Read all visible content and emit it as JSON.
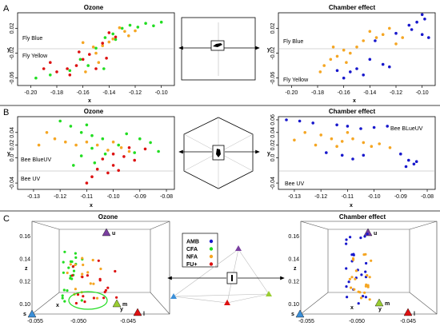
{
  "colors": {
    "green": "#22dd22",
    "orange": "#f5a623",
    "red": "#dd1111",
    "blue": "#1818cc",
    "gray": "#888888"
  },
  "panels": {
    "A": {
      "letter": "A",
      "left": {
        "title": "Ozone",
        "xlabel": "x",
        "ylabel": "y",
        "xticks": [
          "-0.20",
          "-0.18",
          "-0.16",
          "-0.14",
          "-0.12",
          "-0.10"
        ],
        "yticks": [
          "-0.06",
          "-0.02",
          "0.02"
        ],
        "labels": [
          "Fly Blue",
          "Fly Yellow"
        ],
        "points": [
          {
            "x": -0.137,
            "y": 0.011,
            "c": "green"
          },
          {
            "x": -0.13,
            "y": 0.02,
            "c": "green"
          },
          {
            "x": -0.124,
            "y": 0.025,
            "c": "green"
          },
          {
            "x": -0.118,
            "y": 0.022,
            "c": "green"
          },
          {
            "x": -0.112,
            "y": 0.028,
            "c": "green"
          },
          {
            "x": -0.106,
            "y": 0.024,
            "c": "green"
          },
          {
            "x": -0.1,
            "y": 0.03,
            "c": "green"
          },
          {
            "x": -0.143,
            "y": 0.005,
            "c": "green"
          },
          {
            "x": -0.135,
            "y": 0.002,
            "c": "green"
          },
          {
            "x": -0.15,
            "y": -0.012,
            "c": "green"
          },
          {
            "x": -0.162,
            "y": -0.03,
            "c": "green"
          },
          {
            "x": -0.17,
            "y": -0.048,
            "c": "green"
          },
          {
            "x": -0.185,
            "y": -0.055,
            "c": "green"
          },
          {
            "x": -0.196,
            "y": -0.06,
            "c": "green"
          },
          {
            "x": -0.144,
            "y": -0.045,
            "c": "green"
          },
          {
            "x": -0.156,
            "y": -0.04,
            "c": "green"
          },
          {
            "x": -0.132,
            "y": 0.021,
            "c": "orange"
          },
          {
            "x": -0.128,
            "y": 0.015,
            "c": "orange"
          },
          {
            "x": -0.125,
            "y": 0.008,
            "c": "orange"
          },
          {
            "x": -0.12,
            "y": 0.016,
            "c": "orange"
          },
          {
            "x": -0.14,
            "y": -0.002,
            "c": "orange"
          },
          {
            "x": -0.145,
            "y": -0.008,
            "c": "orange"
          },
          {
            "x": -0.152,
            "y": -0.01,
            "c": "orange"
          },
          {
            "x": -0.16,
            "y": -0.003,
            "c": "orange"
          },
          {
            "x": -0.15,
            "y": -0.02,
            "c": "orange"
          },
          {
            "x": -0.158,
            "y": -0.05,
            "c": "orange"
          },
          {
            "x": -0.148,
            "y": -0.035,
            "c": "orange"
          },
          {
            "x": -0.137,
            "y": 0.003,
            "c": "orange"
          },
          {
            "x": -0.14,
            "y": 0.013,
            "c": "red"
          },
          {
            "x": -0.135,
            "y": 0.006,
            "c": "red"
          },
          {
            "x": -0.145,
            "y": -0.004,
            "c": "red"
          },
          {
            "x": -0.155,
            "y": -0.022,
            "c": "red"
          },
          {
            "x": -0.16,
            "y": -0.03,
            "c": "red"
          },
          {
            "x": -0.165,
            "y": -0.04,
            "c": "red"
          },
          {
            "x": -0.172,
            "y": -0.045,
            "c": "red"
          },
          {
            "x": -0.18,
            "y": -0.05,
            "c": "red"
          },
          {
            "x": -0.185,
            "y": -0.035,
            "c": "red"
          },
          {
            "x": -0.19,
            "y": -0.045,
            "c": "red"
          },
          {
            "x": -0.17,
            "y": -0.055,
            "c": "red"
          },
          {
            "x": -0.15,
            "y": -0.045,
            "c": "red"
          },
          {
            "x": -0.142,
            "y": -0.028,
            "c": "red"
          },
          {
            "x": -0.163,
            "y": -0.018,
            "c": "red"
          }
        ]
      },
      "right": {
        "title": "Chamber effect",
        "xlabel": "x",
        "ylabel": "y",
        "xticks": [
          "-0.20",
          "-0.18",
          "-0.16",
          "-0.14",
          "-0.12",
          "-0.10"
        ],
        "yticks": [
          "-0.06",
          "-0.02",
          "0.02"
        ],
        "labels": [
          "Fly Blue",
          "Fly Yellow"
        ],
        "points": [
          {
            "x": -0.1,
            "y": 0.042,
            "c": "blue"
          },
          {
            "x": -0.098,
            "y": 0.035,
            "c": "blue"
          },
          {
            "x": -0.104,
            "y": 0.03,
            "c": "blue"
          },
          {
            "x": -0.11,
            "y": 0.025,
            "c": "blue"
          },
          {
            "x": -0.108,
            "y": 0.018,
            "c": "blue"
          },
          {
            "x": -0.1,
            "y": 0.01,
            "c": "blue"
          },
          {
            "x": -0.095,
            "y": 0.005,
            "c": "blue"
          },
          {
            "x": -0.12,
            "y": 0.012,
            "c": "blue"
          },
          {
            "x": -0.136,
            "y": 0.0,
            "c": "blue"
          },
          {
            "x": -0.14,
            "y": -0.03,
            "c": "blue"
          },
          {
            "x": -0.15,
            "y": -0.045,
            "c": "blue"
          },
          {
            "x": -0.145,
            "y": -0.055,
            "c": "blue"
          },
          {
            "x": -0.155,
            "y": -0.05,
            "c": "blue"
          },
          {
            "x": -0.16,
            "y": -0.06,
            "c": "blue"
          },
          {
            "x": -0.165,
            "y": -0.048,
            "c": "blue"
          },
          {
            "x": -0.13,
            "y": -0.038,
            "c": "blue"
          },
          {
            "x": -0.125,
            "y": -0.042,
            "c": "blue"
          },
          {
            "x": -0.125,
            "y": 0.02,
            "c": "orange"
          },
          {
            "x": -0.13,
            "y": 0.01,
            "c": "orange"
          },
          {
            "x": -0.135,
            "y": 0.005,
            "c": "orange"
          },
          {
            "x": -0.14,
            "y": 0.015,
            "c": "orange"
          },
          {
            "x": -0.145,
            "y": 0.0,
            "c": "orange"
          },
          {
            "x": -0.15,
            "y": -0.01,
            "c": "orange"
          },
          {
            "x": -0.155,
            "y": -0.02,
            "c": "orange"
          },
          {
            "x": -0.16,
            "y": -0.015,
            "c": "orange"
          },
          {
            "x": -0.165,
            "y": -0.025,
            "c": "orange"
          },
          {
            "x": -0.17,
            "y": -0.03,
            "c": "orange"
          },
          {
            "x": -0.175,
            "y": -0.04,
            "c": "orange"
          },
          {
            "x": -0.178,
            "y": -0.05,
            "c": "orange"
          },
          {
            "x": -0.12,
            "y": -0.005,
            "c": "orange"
          },
          {
            "x": -0.115,
            "y": 0.005,
            "c": "orange"
          },
          {
            "x": -0.168,
            "y": -0.01,
            "c": "orange"
          },
          {
            "x": -0.158,
            "y": -0.035,
            "c": "orange"
          }
        ]
      }
    },
    "B": {
      "letter": "B",
      "left": {
        "title": "Ozone",
        "xlabel": "x",
        "ylabel": "y",
        "xticks": [
          "-0.13",
          "-0.12",
          "-0.11",
          "-0.10",
          "-0.09",
          "-0.08"
        ],
        "yticks": [
          "-0.04",
          "0.0",
          "0.02",
          "0.04"
        ],
        "labels": [
          "Bee BlueUV",
          "Bee UV"
        ],
        "points": [
          {
            "x": -0.12,
            "y": 0.058,
            "c": "green"
          },
          {
            "x": -0.116,
            "y": 0.05,
            "c": "green"
          },
          {
            "x": -0.11,
            "y": 0.052,
            "c": "green"
          },
          {
            "x": -0.112,
            "y": 0.04,
            "c": "green"
          },
          {
            "x": -0.108,
            "y": 0.035,
            "c": "green"
          },
          {
            "x": -0.104,
            "y": 0.03,
            "c": "green"
          },
          {
            "x": -0.095,
            "y": 0.038,
            "c": "green"
          },
          {
            "x": -0.09,
            "y": 0.03,
            "c": "green"
          },
          {
            "x": -0.086,
            "y": 0.024,
            "c": "green"
          },
          {
            "x": -0.098,
            "y": 0.02,
            "c": "green"
          },
          {
            "x": -0.108,
            "y": 0.015,
            "c": "green"
          },
          {
            "x": -0.112,
            "y": 0.003,
            "c": "green"
          },
          {
            "x": -0.103,
            "y": 0.006,
            "c": "green"
          },
          {
            "x": -0.107,
            "y": -0.008,
            "c": "green"
          },
          {
            "x": -0.083,
            "y": 0.01,
            "c": "green"
          },
          {
            "x": -0.092,
            "y": 0.008,
            "c": "green"
          },
          {
            "x": -0.115,
            "y": -0.012,
            "c": "green"
          },
          {
            "x": -0.125,
            "y": 0.04,
            "c": "orange"
          },
          {
            "x": -0.122,
            "y": 0.03,
            "c": "orange"
          },
          {
            "x": -0.128,
            "y": 0.02,
            "c": "orange"
          },
          {
            "x": -0.118,
            "y": 0.025,
            "c": "orange"
          },
          {
            "x": -0.114,
            "y": 0.02,
            "c": "orange"
          },
          {
            "x": -0.11,
            "y": 0.025,
            "c": "orange"
          },
          {
            "x": -0.106,
            "y": 0.02,
            "c": "orange"
          },
          {
            "x": -0.1,
            "y": 0.025,
            "c": "orange"
          },
          {
            "x": -0.102,
            "y": 0.012,
            "c": "orange"
          },
          {
            "x": -0.097,
            "y": 0.016,
            "c": "orange"
          },
          {
            "x": -0.094,
            "y": 0.01,
            "c": "orange"
          },
          {
            "x": -0.1,
            "y": 0.006,
            "c": "red"
          },
          {
            "x": -0.096,
            "y": 0.002,
            "c": "red"
          },
          {
            "x": -0.092,
            "y": -0.004,
            "c": "red"
          },
          {
            "x": -0.104,
            "y": -0.002,
            "c": "red"
          },
          {
            "x": -0.1,
            "y": -0.012,
            "c": "red"
          },
          {
            "x": -0.106,
            "y": -0.018,
            "c": "red"
          },
          {
            "x": -0.102,
            "y": -0.024,
            "c": "red"
          },
          {
            "x": -0.108,
            "y": -0.03,
            "c": "red"
          },
          {
            "x": -0.11,
            "y": -0.04,
            "c": "red"
          },
          {
            "x": -0.098,
            "y": -0.02,
            "c": "red"
          },
          {
            "x": -0.094,
            "y": 0.016,
            "c": "red"
          },
          {
            "x": -0.088,
            "y": 0.014,
            "c": "red"
          }
        ]
      },
      "right": {
        "title": "Chamber effect",
        "xlabel": "x",
        "ylabel": "y",
        "xticks": [
          "-0.13",
          "-0.12",
          "-0.11",
          "-0.10",
          "-0.09",
          "-0.08"
        ],
        "yticks": [
          "-0.04",
          "0.0",
          "0.02",
          "0.04",
          "0.06"
        ],
        "labels": [
          "Bee BLueUV",
          "Bee UV"
        ],
        "points": [
          {
            "x": -0.133,
            "y": 0.06,
            "c": "blue"
          },
          {
            "x": -0.128,
            "y": 0.058,
            "c": "blue"
          },
          {
            "x": -0.123,
            "y": 0.055,
            "c": "blue"
          },
          {
            "x": -0.114,
            "y": 0.052,
            "c": "blue"
          },
          {
            "x": -0.11,
            "y": 0.05,
            "c": "blue"
          },
          {
            "x": -0.105,
            "y": 0.046,
            "c": "blue"
          },
          {
            "x": -0.1,
            "y": 0.048,
            "c": "blue"
          },
          {
            "x": -0.095,
            "y": 0.05,
            "c": "blue"
          },
          {
            "x": -0.118,
            "y": 0.008,
            "c": "blue"
          },
          {
            "x": -0.112,
            "y": 0.004,
            "c": "blue"
          },
          {
            "x": -0.108,
            "y": -0.002,
            "c": "blue"
          },
          {
            "x": -0.104,
            "y": 0.004,
            "c": "blue"
          },
          {
            "x": -0.09,
            "y": 0.006,
            "c": "blue"
          },
          {
            "x": -0.087,
            "y": -0.004,
            "c": "blue"
          },
          {
            "x": -0.085,
            "y": -0.01,
            "c": "blue"
          },
          {
            "x": -0.088,
            "y": -0.014,
            "c": "blue"
          },
          {
            "x": -0.084,
            "y": -0.006,
            "c": "blue"
          },
          {
            "x": -0.126,
            "y": 0.04,
            "c": "orange"
          },
          {
            "x": -0.12,
            "y": 0.036,
            "c": "orange"
          },
          {
            "x": -0.116,
            "y": 0.03,
            "c": "orange"
          },
          {
            "x": -0.112,
            "y": 0.026,
            "c": "orange"
          },
          {
            "x": -0.108,
            "y": 0.03,
            "c": "orange"
          },
          {
            "x": -0.104,
            "y": 0.024,
            "c": "orange"
          },
          {
            "x": -0.101,
            "y": 0.018,
            "c": "orange"
          },
          {
            "x": -0.098,
            "y": 0.022,
            "c": "orange"
          },
          {
            "x": -0.094,
            "y": 0.016,
            "c": "orange"
          },
          {
            "x": -0.122,
            "y": 0.02,
            "c": "orange"
          },
          {
            "x": -0.114,
            "y": 0.018,
            "c": "orange"
          },
          {
            "x": -0.13,
            "y": 0.028,
            "c": "orange"
          },
          {
            "x": -0.11,
            "y": 0.04,
            "c": "orange"
          }
        ]
      }
    },
    "C": {
      "letter": "C",
      "left": {
        "title": "Ozone",
        "zticks": [
          "0.10",
          "0.12",
          "0.14",
          "0.16"
        ],
        "xticks": [
          "-0.055",
          "-0.050",
          "-0.045"
        ],
        "axis_letters": {
          "z": "z",
          "x": "x",
          "y": "y"
        },
        "vertex_labels": {
          "s": "s",
          "u": "u",
          "m": "m",
          "l": "l"
        }
      },
      "right": {
        "title": "Chamber effect",
        "zticks": [
          "0.10",
          "0.12",
          "0.14",
          "0.16"
        ],
        "xticks": [
          "-0.055",
          "-0.050",
          "-0.045"
        ],
        "axis_letters": {
          "z": "z",
          "x": "x",
          "y": "y"
        },
        "vertex_labels": {
          "s": "s",
          "u": "u",
          "m": "m",
          "l": "l"
        }
      },
      "legend": [
        {
          "label": "AMB",
          "c": "blue"
        },
        {
          "label": "CFA",
          "c": "green"
        },
        {
          "label": "NFA",
          "c": "orange"
        },
        {
          "label": "FU+",
          "c": "red"
        }
      ]
    }
  }
}
